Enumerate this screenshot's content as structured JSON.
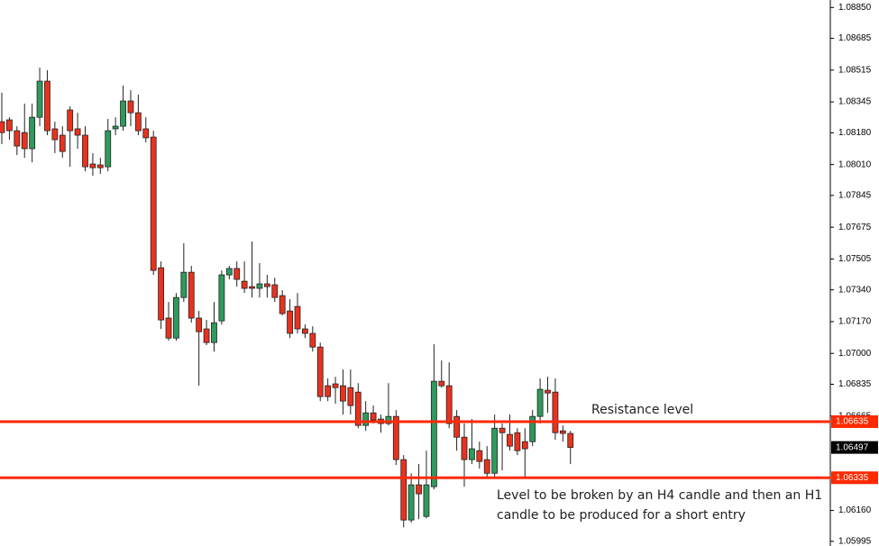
{
  "chart_data": {
    "type": "candlestick",
    "up_color": "#2e9a5c",
    "down_color": "#e8321e",
    "ylim": [
      1.0597,
      1.0889
    ],
    "yticks": [
      {
        "value": 1.0885,
        "label": "1.08850"
      },
      {
        "value": 1.08685,
        "label": "1.08685"
      },
      {
        "value": 1.08515,
        "label": "1.08515"
      },
      {
        "value": 1.08345,
        "label": "1.08345"
      },
      {
        "value": 1.0818,
        "label": "1.08180"
      },
      {
        "value": 1.0801,
        "label": "1.08010"
      },
      {
        "value": 1.07845,
        "label": "1.07845"
      },
      {
        "value": 1.07675,
        "label": "1.07675"
      },
      {
        "value": 1.07505,
        "label": "1.07505"
      },
      {
        "value": 1.0734,
        "label": "1.07340"
      },
      {
        "value": 1.0717,
        "label": "1.07170"
      },
      {
        "value": 1.07,
        "label": "1.07000"
      },
      {
        "value": 1.06835,
        "label": "1.06835"
      },
      {
        "value": 1.06665,
        "label": "1.06665"
      },
      {
        "value": 1.0616,
        "label": "1.06160"
      },
      {
        "value": 1.05995,
        "label": "1.05995"
      }
    ],
    "levels": [
      {
        "value": 1.06635,
        "label": "1.06635",
        "color": "#ff2a00"
      },
      {
        "value": 1.06335,
        "label": "1.06335",
        "color": "#ff2a00"
      }
    ],
    "last_price": {
      "value": 1.06497,
      "label": "1.06497"
    },
    "annotations": [
      {
        "lines": [
          "Resistance level"
        ]
      },
      {
        "lines": [
          "Level to be broken by an H4 candle and then an H1",
          "candle to be produced for a short entry"
        ]
      }
    ],
    "open": [
      1.08239,
      1.08249,
      1.08191,
      1.08181,
      1.08095,
      1.08263,
      1.08456,
      1.08201,
      1.08167,
      1.08302,
      1.08201,
      1.08167,
      1.08013,
      1.08008,
      1.07998,
      1.08201,
      1.08215,
      1.0835,
      1.08287,
      1.08201,
      1.08157,
      1.07458,
      1.07189,
      1.07082,
      1.07299,
      1.07434,
      1.07189,
      1.07131,
      1.07058,
      1.07174,
      1.0742,
      1.07454,
      1.07386,
      1.07357,
      1.07348,
      1.07372,
      1.07367,
      1.07309,
      1.07227,
      1.07251,
      1.07131,
      1.07107,
      1.07034,
      1.06827,
      1.06837,
      1.06827,
      1.06817,
      1.06793,
      1.06615,
      1.06682,
      1.06649,
      1.06625,
      1.06663,
      1.06432,
      1.06109,
      1.06297,
      1.06128,
      1.06287,
      1.06851,
      1.06827,
      1.06663,
      1.06552,
      1.06432,
      1.0648,
      1.06432,
      1.06359,
      1.066,
      1.06567,
      1.06576,
      1.06528,
      1.06528,
      1.06663,
      1.06803,
      1.06793,
      1.06586,
      1.06572
    ],
    "high": [
      1.08394,
      1.08263,
      1.08215,
      1.08336,
      1.08336,
      1.08528,
      1.08514,
      1.08239,
      1.08215,
      1.08321,
      1.08287,
      1.08215,
      1.08071,
      1.08046,
      1.08254,
      1.08263,
      1.08432,
      1.08408,
      1.08384,
      1.08263,
      1.08191,
      1.07492,
      1.07275,
      1.07323,
      1.07589,
      1.07468,
      1.07227,
      1.07179,
      1.07275,
      1.07444,
      1.07468,
      1.07492,
      1.07492,
      1.07598,
      1.07483,
      1.0742,
      1.07405,
      1.07338,
      1.0729,
      1.07323,
      1.07155,
      1.07145,
      1.07058,
      1.06866,
      1.06875,
      1.06914,
      1.06914,
      1.06841,
      1.06745,
      1.06721,
      1.06673,
      1.06841,
      1.06697,
      1.06456,
      1.06359,
      1.06408,
      1.0648,
      1.07049,
      1.06962,
      1.06952,
      1.06697,
      1.06625,
      1.06649,
      1.06528,
      1.06504,
      1.06673,
      1.06625,
      1.06673,
      1.066,
      1.066,
      1.06697,
      1.06866,
      1.06875,
      1.06866,
      1.06615,
      1.06586
    ],
    "low": [
      1.08119,
      1.08143,
      1.08061,
      1.08046,
      1.08022,
      1.08215,
      1.08167,
      1.08071,
      1.08046,
      1.07998,
      1.08095,
      1.07974,
      1.0795,
      1.0796,
      1.07974,
      1.08167,
      1.08191,
      1.08215,
      1.08167,
      1.08128,
      1.0742,
      1.07131,
      1.07068,
      1.07068,
      1.07275,
      1.07164,
      1.06827,
      1.07044,
      1.0701,
      1.07155,
      1.07396,
      1.07357,
      1.07323,
      1.07299,
      1.07299,
      1.07299,
      1.07275,
      1.07203,
      1.07082,
      1.07107,
      1.07082,
      1.0701,
      1.06745,
      1.06745,
      1.06731,
      1.06673,
      1.06673,
      1.066,
      1.06586,
      1.06625,
      1.06576,
      1.06615,
      1.06403,
      1.0607,
      1.06094,
      1.06114,
      1.06118,
      1.06273,
      1.06817,
      1.066,
      1.0648,
      1.06287,
      1.06408,
      1.06384,
      1.06335,
      1.06335,
      1.06374,
      1.0648,
      1.06456,
      1.06335,
      1.06504,
      1.06625,
      1.06682,
      1.06538,
      1.06528,
      1.06408
    ],
    "close": [
      1.08181,
      1.08191,
      1.08109,
      1.08095,
      1.08263,
      1.08456,
      1.08191,
      1.08143,
      1.0808,
      1.08191,
      1.08167,
      1.07998,
      1.07993,
      1.07993,
      1.08191,
      1.08215,
      1.0835,
      1.08287,
      1.08191,
      1.08153,
      1.07444,
      1.07179,
      1.07082,
      1.07299,
      1.07434,
      1.07189,
      1.07116,
      1.07058,
      1.07164,
      1.0742,
      1.07454,
      1.07396,
      1.07348,
      1.07348,
      1.07372,
      1.07357,
      1.07299,
      1.07213,
      1.07107,
      1.07131,
      1.07107,
      1.07034,
      1.06769,
      1.06769,
      1.06817,
      1.06745,
      1.06721,
      1.06615,
      1.06682,
      1.06644,
      1.06625,
      1.06663,
      1.06432,
      1.06109,
      1.06297,
      1.06249,
      1.06297,
      1.06851,
      1.06827,
      1.06625,
      1.06552,
      1.06432,
      1.0649,
      1.06422,
      1.06359,
      1.066,
      1.06576,
      1.06504,
      1.0648,
      1.0649,
      1.06663,
      1.06808,
      1.06788,
      1.06576,
      1.06572,
      1.06497
    ]
  }
}
